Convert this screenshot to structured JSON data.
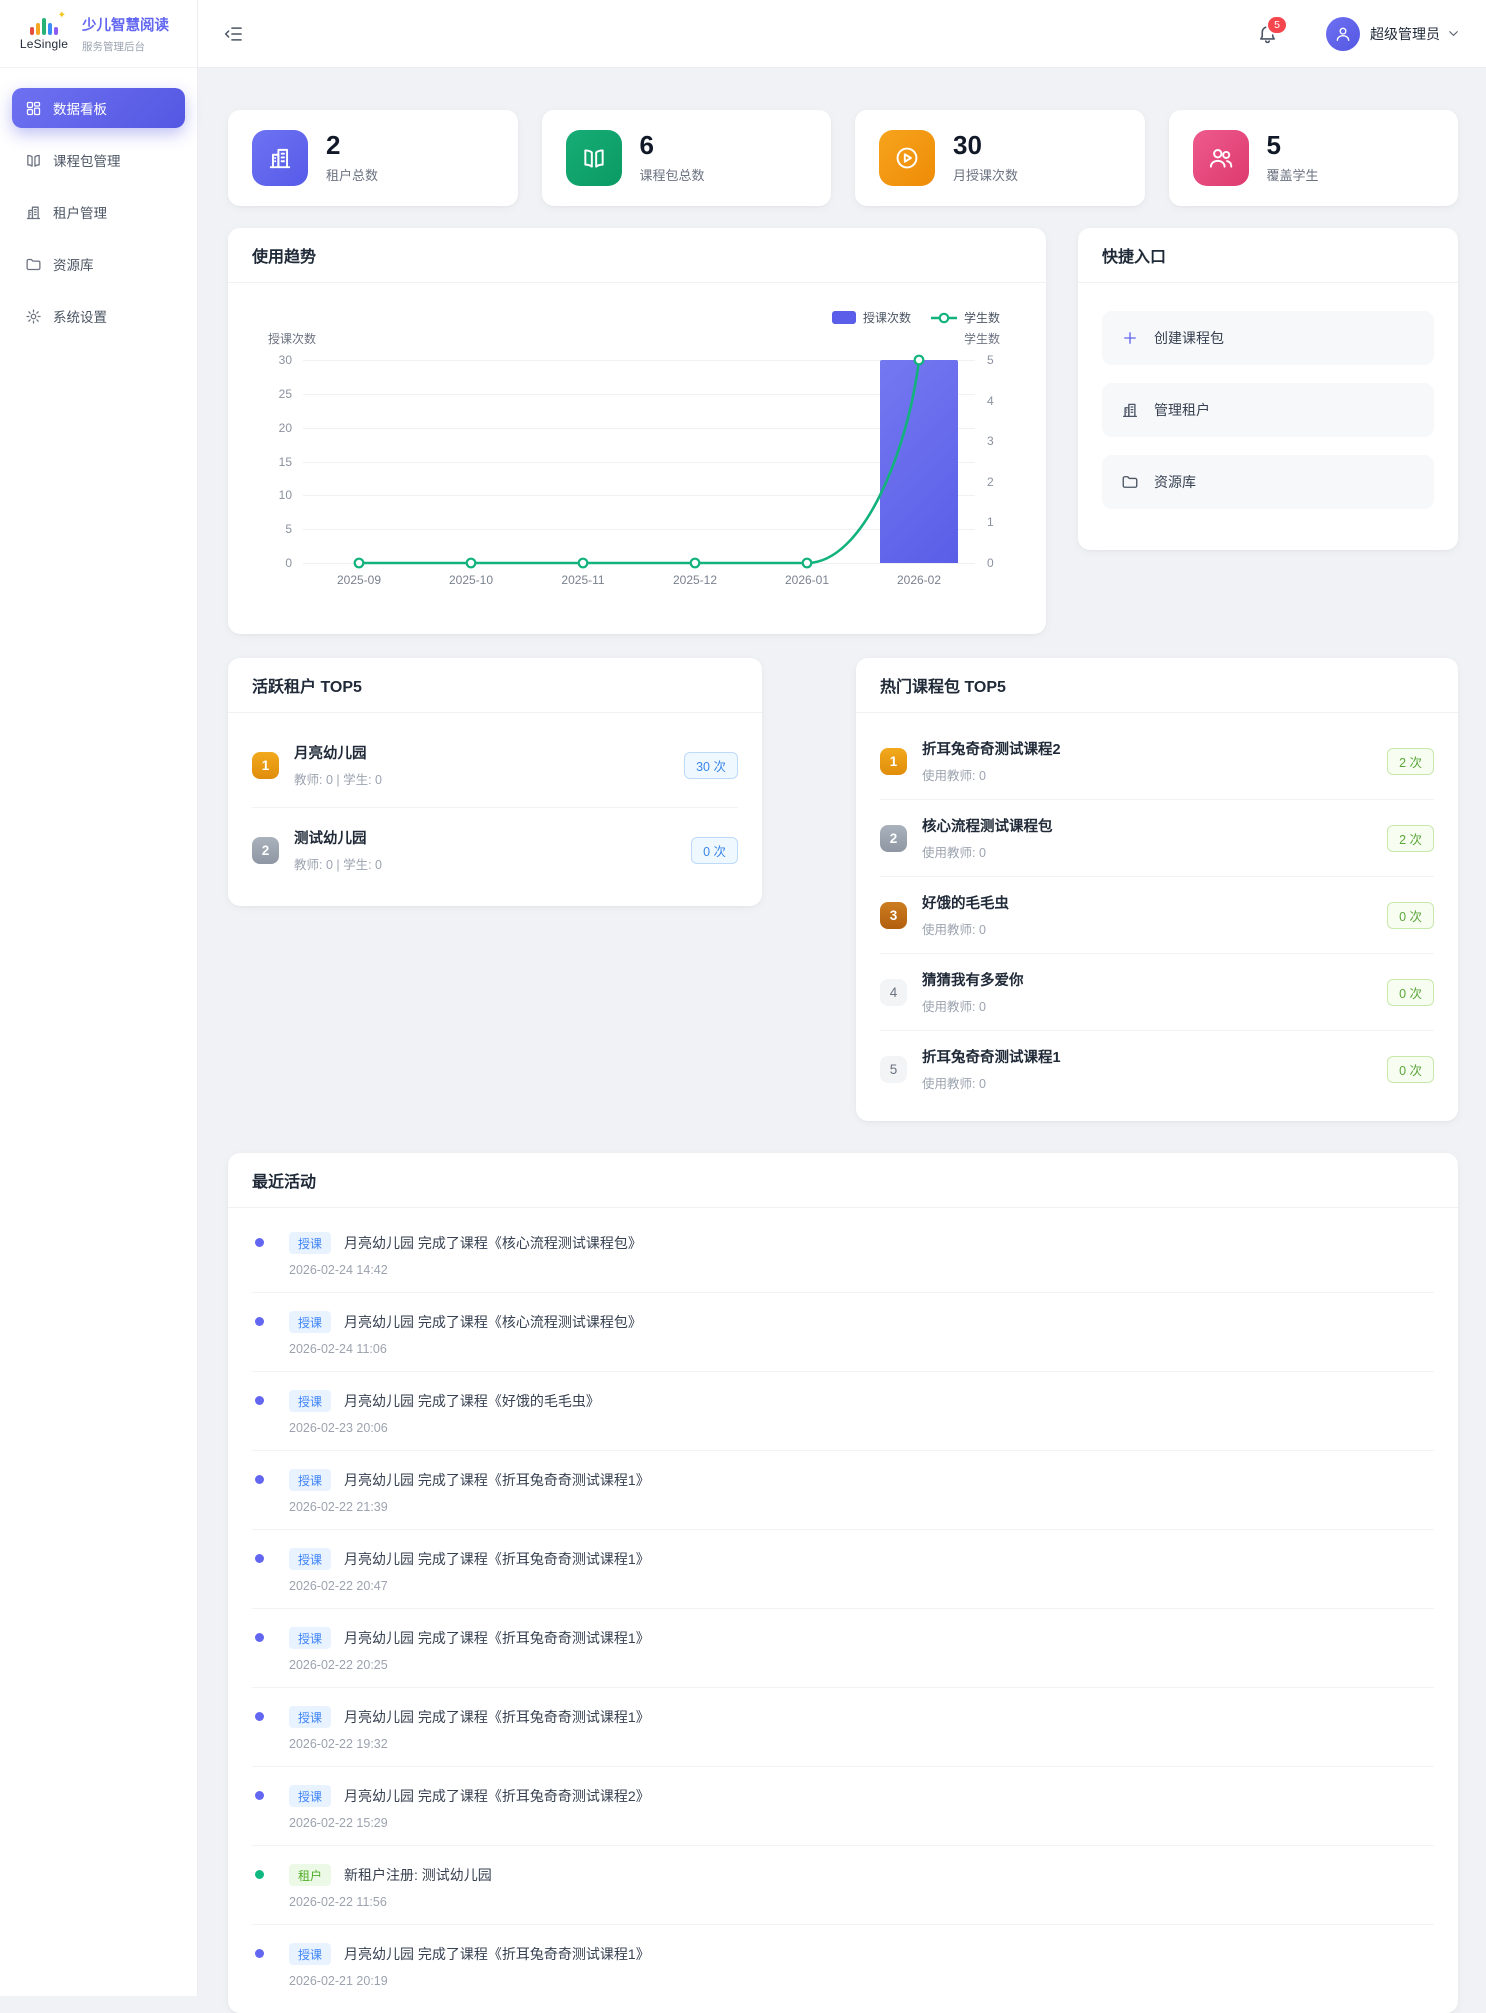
{
  "brand": {
    "logo": "LeSingle",
    "title": "少儿智慧阅读",
    "subtitle": "服务管理后台",
    "accent": "#6366f1"
  },
  "sidebar": {
    "items": [
      {
        "label": "数据看板",
        "icon": "dashboard",
        "active": true
      },
      {
        "label": "课程包管理",
        "icon": "book",
        "active": false
      },
      {
        "label": "租户管理",
        "icon": "building",
        "active": false
      },
      {
        "label": "资源库",
        "icon": "folder",
        "active": false
      },
      {
        "label": "系统设置",
        "icon": "gear",
        "active": false
      }
    ]
  },
  "header": {
    "notification_count": "5",
    "user_name": "超级管理员"
  },
  "stats": [
    {
      "value": "2",
      "label": "租户总数",
      "icon": "building",
      "color1": "#6e72f2",
      "color2": "#565be8"
    },
    {
      "value": "6",
      "label": "课程包总数",
      "icon": "book",
      "color1": "#17ad76",
      "color2": "#0b9a63"
    },
    {
      "value": "30",
      "label": "月授课次数",
      "icon": "play",
      "color1": "#f7a41d",
      "color2": "#ee8b06"
    },
    {
      "value": "5",
      "label": "覆盖学生",
      "icon": "people",
      "color1": "#ee5a8d",
      "color2": "#dd3a6e"
    }
  ],
  "trend": {
    "title": "使用趋势",
    "chart_data": {
      "type": "bar+line",
      "categories": [
        "2025-09",
        "2025-10",
        "2025-11",
        "2025-12",
        "2026-01",
        "2026-02"
      ],
      "series": [
        {
          "name": "授课次数",
          "type": "bar",
          "axis": "left",
          "color": "#5a5ee8",
          "color2": "#7478f0",
          "values": [
            0,
            0,
            0,
            0,
            0,
            30
          ]
        },
        {
          "name": "学生数",
          "type": "line",
          "axis": "right",
          "color": "#12b27c",
          "values": [
            0,
            0,
            0,
            0,
            0,
            5
          ]
        }
      ],
      "left_axis": {
        "title": "授课次数",
        "min": 0,
        "max": 30,
        "ticks": [
          0,
          5,
          10,
          15,
          20,
          25,
          30
        ]
      },
      "right_axis": {
        "title": "学生数",
        "min": 0,
        "max": 5,
        "ticks": [
          0,
          1,
          2,
          3,
          4,
          5
        ]
      },
      "grid": true,
      "legend_position": "top-right"
    }
  },
  "quick": {
    "title": "快捷入口",
    "items": [
      {
        "icon": "plus",
        "label": "创建课程包",
        "accent": true
      },
      {
        "icon": "building",
        "label": "管理租户",
        "accent": false
      },
      {
        "icon": "folder",
        "label": "资源库",
        "accent": false
      }
    ]
  },
  "active_tenants": {
    "title": "活跃租户 TOP5",
    "pill_style": "blue",
    "items": [
      {
        "rank": "1",
        "name": "月亮幼儿园",
        "sub": "教师: 0 | 学生: 0",
        "count": "30 次"
      },
      {
        "rank": "2",
        "name": "测试幼儿园",
        "sub": "教师: 0 | 学生: 0",
        "count": "0 次"
      }
    ]
  },
  "hot_packages": {
    "title": "热门课程包 TOP5",
    "pill_style": "green",
    "items": [
      {
        "rank": "1",
        "name": "折耳兔奇奇测试课程2",
        "sub": "使用教师: 0",
        "count": "2 次"
      },
      {
        "rank": "2",
        "name": "核心流程测试课程包",
        "sub": "使用教师: 0",
        "count": "2 次"
      },
      {
        "rank": "3",
        "name": "好饿的毛毛虫",
        "sub": "使用教师: 0",
        "count": "0 次"
      },
      {
        "rank": "4",
        "name": "猜猜我有多爱你",
        "sub": "使用教师: 0",
        "count": "0 次"
      },
      {
        "rank": "5",
        "name": "折耳兔奇奇测试课程1",
        "sub": "使用教师: 0",
        "count": "0 次"
      }
    ]
  },
  "activities": {
    "title": "最近活动",
    "items": [
      {
        "tag": "授课",
        "type": "course",
        "text": "月亮幼儿园 完成了课程《核心流程测试课程包》",
        "time": "2026-02-24 14:42"
      },
      {
        "tag": "授课",
        "type": "course",
        "text": "月亮幼儿园 完成了课程《核心流程测试课程包》",
        "time": "2026-02-24 11:06"
      },
      {
        "tag": "授课",
        "type": "course",
        "text": "月亮幼儿园 完成了课程《好饿的毛毛虫》",
        "time": "2026-02-23 20:06"
      },
      {
        "tag": "授课",
        "type": "course",
        "text": "月亮幼儿园 完成了课程《折耳兔奇奇测试课程1》",
        "time": "2026-02-22 21:39"
      },
      {
        "tag": "授课",
        "type": "course",
        "text": "月亮幼儿园 完成了课程《折耳兔奇奇测试课程1》",
        "time": "2026-02-22 20:47"
      },
      {
        "tag": "授课",
        "type": "course",
        "text": "月亮幼儿园 完成了课程《折耳兔奇奇测试课程1》",
        "time": "2026-02-22 20:25"
      },
      {
        "tag": "授课",
        "type": "course",
        "text": "月亮幼儿园 完成了课程《折耳兔奇奇测试课程1》",
        "time": "2026-02-22 19:32"
      },
      {
        "tag": "授课",
        "type": "course",
        "text": "月亮幼儿园 完成了课程《折耳兔奇奇测试课程2》",
        "time": "2026-02-22 15:29"
      },
      {
        "tag": "租户",
        "type": "tenant",
        "text": "新租户注册: 测试幼儿园",
        "time": "2026-02-22 11:56"
      },
      {
        "tag": "授课",
        "type": "course",
        "text": "月亮幼儿园 完成了课程《折耳兔奇奇测试课程1》",
        "time": "2026-02-21 20:19"
      }
    ]
  },
  "colors": {
    "course_dot": "#6366f1",
    "tenant_dot": "#10b981",
    "logo_bars": [
      "#e44d3f",
      "#f5a623",
      "#27b376",
      "#3a8ef6",
      "#8b5cf6"
    ]
  }
}
